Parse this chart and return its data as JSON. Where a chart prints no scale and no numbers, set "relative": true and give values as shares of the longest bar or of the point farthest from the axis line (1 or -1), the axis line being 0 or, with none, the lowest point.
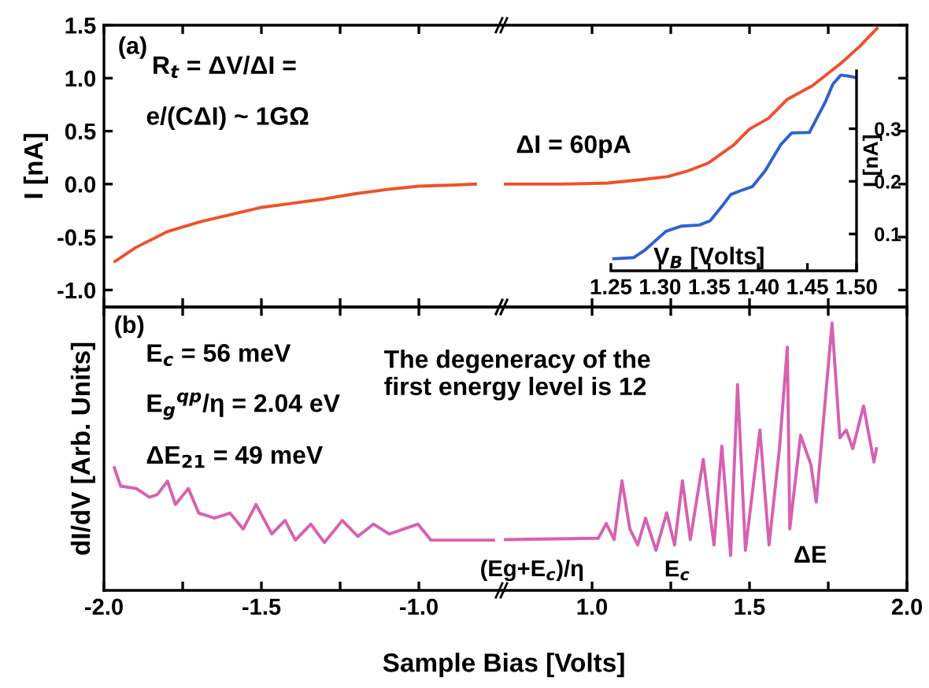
{
  "chart_data": [
    {
      "type": "line",
      "ylabel": "I [nA]",
      "xlim": [
        -2.0,
        -0.73
      ],
      "ylim": [
        -1.16,
        1.5
      ],
      "tick_labels": "y",
      "xticks": [
        -2.0,
        -1.75,
        -1.5,
        -1.25,
        -1.0
      ],
      "yticks": [
        {
          "value": -1.0,
          "label": "-1.0"
        },
        -0.5,
        {
          "value": 0.0,
          "label": "0.0"
        },
        0.5,
        {
          "value": 1.0,
          "label": "1.0"
        },
        1.5
      ],
      "x": [
        -1.965,
        -1.9,
        -1.8,
        -1.7,
        -1.6,
        -1.5,
        -1.4,
        -1.3,
        -1.2,
        -1.1,
        -1.0,
        -0.9,
        -0.82
      ],
      "series": [
        {
          "color": "#f0502a",
          "values": [
            -0.73,
            -0.6,
            -0.45,
            -0.36,
            -0.29,
            -0.22,
            -0.18,
            -0.14,
            -0.09,
            -0.05,
            -0.02,
            -0.01,
            0.0
          ]
        }
      ],
      "annotations": [
        "(a)",
        "R$_{t}$ = ΔV/ΔI =",
        "e/(CΔI) ~ 1GΩ"
      ]
    },
    {
      "type": "line",
      "xlim": [
        0.72,
        2.0
      ],
      "ylim": [
        -1.16,
        1.5
      ],
      "tick_labels": false,
      "xticks": [
        1.0,
        1.25,
        1.5,
        1.75
      ],
      "yticks": [
        -1.0,
        -0.5,
        0.0,
        0.5,
        1.0,
        1.5
      ],
      "x": [
        0.72,
        0.9,
        1.05,
        1.15,
        1.24,
        1.3,
        1.37,
        1.45,
        1.5,
        1.56,
        1.62,
        1.7,
        1.79,
        1.85,
        1.905
      ],
      "series": [
        {
          "color": "#f0502a",
          "values": [
            0.0,
            0.0,
            0.01,
            0.04,
            0.07,
            0.12,
            0.2,
            0.37,
            0.52,
            0.62,
            0.8,
            0.93,
            1.14,
            1.3,
            1.47
          ]
        }
      ],
      "annotations": [
        "ΔI = 60pA"
      ]
    },
    {
      "type": "line",
      "xlabel": "V$_{B}$ [Volts]",
      "ylabel": "I [nA]",
      "xlim": [
        1.25,
        1.5
      ],
      "ylim": [
        0.03,
        0.41
      ],
      "xticks": [
        1.25,
        {
          "value": 1.3,
          "label": "1.30"
        },
        1.35,
        {
          "value": 1.4,
          "label": "1.40"
        },
        1.45,
        {
          "value": 1.5,
          "label": "1.50"
        }
      ],
      "yticks": [
        0.1,
        0.2,
        0.3
      ],
      "x": [
        1.253,
        1.273,
        1.285,
        1.306,
        1.322,
        1.34,
        1.351,
        1.364,
        1.372,
        1.383,
        1.394,
        1.407,
        1.423,
        1.434,
        1.452,
        1.468,
        1.476,
        1.484,
        1.492,
        1.5
      ],
      "series": [
        {
          "color": "#3060d0",
          "values": [
            0.053,
            0.055,
            0.07,
            0.105,
            0.115,
            0.117,
            0.125,
            0.155,
            0.175,
            0.183,
            0.19,
            0.22,
            0.27,
            0.292,
            0.293,
            0.35,
            0.385,
            0.402,
            0.4,
            0.397
          ]
        }
      ]
    },
    {
      "type": "line",
      "ylabel": "dI/dV [Arb. Units]",
      "relative": true,
      "xlim": [
        -2.0,
        -0.73
      ],
      "tick_labels": "x",
      "xticks": [
        {
          "value": -2.0,
          "label": "-2.0"
        },
        {
          "value": -1.75,
          "label": null
        },
        {
          "value": -1.5,
          "label": "-1.5"
        },
        {
          "value": -1.25,
          "label": null
        },
        {
          "value": -1.0,
          "label": "-1.0"
        }
      ],
      "x": [
        -1.967,
        -1.947,
        -1.897,
        -1.856,
        -1.831,
        -1.798,
        -1.773,
        -1.732,
        -1.699,
        -1.649,
        -1.6,
        -1.558,
        -1.517,
        -1.467,
        -1.425,
        -1.392,
        -1.343,
        -1.3,
        -1.243,
        -1.194,
        -1.144,
        -1.094,
        -1.003,
        -0.962,
        -0.763
      ],
      "series": [
        {
          "color": "#d860b0",
          "values": [
            1.0,
            0.85,
            0.83,
            0.76,
            0.78,
            0.89,
            0.7,
            0.83,
            0.63,
            0.59,
            0.63,
            0.5,
            0.7,
            0.46,
            0.57,
            0.41,
            0.54,
            0.39,
            0.57,
            0.44,
            0.54,
            0.46,
            0.54,
            0.41,
            0.41
          ]
        }
      ],
      "annotations": [
        "(b)",
        "E$_{c}$ = 56 meV",
        "E$_{g}$$^{qp}$/η = 2.04 eV",
        "ΔE$_{21}$ = 49 meV",
        "The degeneracy of the\nfirst energy level is 12"
      ]
    },
    {
      "type": "line",
      "xlabel": "Sample Bias [Volts]",
      "relative": true,
      "xlim": [
        0.72,
        2.0
      ],
      "tick_labels": "x",
      "xticks": [
        {
          "value": 1.0,
          "label": "1.0"
        },
        {
          "value": 1.25,
          "label": null
        },
        {
          "value": 1.5,
          "label": "1.5"
        },
        {
          "value": 1.75,
          "label": null
        },
        {
          "value": 2.0,
          "label": "2.0"
        }
      ],
      "x": [
        0.72,
        1.02,
        1.045,
        1.07,
        1.095,
        1.12,
        1.145,
        1.17,
        1.203,
        1.237,
        1.262,
        1.287,
        1.312,
        1.353,
        1.387,
        1.412,
        1.44,
        1.462,
        1.487,
        1.533,
        1.562,
        1.595,
        1.62,
        1.628,
        1.662,
        1.695,
        1.712,
        1.762,
        1.787,
        1.807,
        1.828,
        1.862,
        1.895,
        1.903
      ],
      "series": [
        {
          "color": "#d860b0",
          "values": [
            0.19,
            0.195,
            0.25,
            0.19,
            0.41,
            0.23,
            0.17,
            0.27,
            0.15,
            0.29,
            0.17,
            0.41,
            0.19,
            0.49,
            0.17,
            0.54,
            0.13,
            0.77,
            0.15,
            0.6,
            0.17,
            0.53,
            0.91,
            0.23,
            0.58,
            0.47,
            0.33,
            1.0,
            0.57,
            0.6,
            0.53,
            0.69,
            0.48,
            0.53
          ]
        }
      ],
      "annotations": [
        "(Eg+E$_{c}$)/η",
        "E$_{c}$",
        "ΔE"
      ]
    }
  ]
}
